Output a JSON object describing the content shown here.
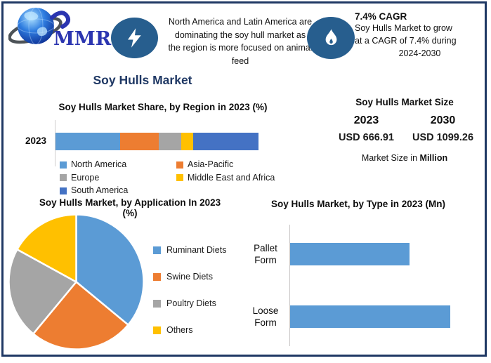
{
  "header": {
    "logo_text": "MMR",
    "callout1": {
      "lines": [
        "North America and Latin America are",
        "dominating the soy hull market as",
        "the region is more focused on animal",
        "feed"
      ]
    },
    "callout2": {
      "heading": "7.4% CAGR",
      "lines": [
        "Soy Hulls Market to grow",
        "at a CAGR of 7.4% during",
        "2024-2030"
      ]
    }
  },
  "main_title": "Soy Hulls Market",
  "market_size": {
    "title": "Soy Hulls Market Size",
    "years": [
      "2023",
      "2030"
    ],
    "values": [
      "USD 666.91",
      "USD 1099.26"
    ],
    "caption_prefix": "Market Size in ",
    "caption_emphasis": "Million",
    "value_color": "#1581C5"
  },
  "colors": {
    "border_navy": "#1F3864",
    "icon_ellipse": "#275E8E",
    "value_blue": "#1581C5"
  },
  "chart_data": [
    {
      "id": "region_share",
      "type": "bar",
      "variant": "stacked-horizontal",
      "title": "Soy Hulls Market Share, by Region in 2023 (%)",
      "categories": [
        "2023"
      ],
      "series": [
        {
          "name": "North America",
          "values": [
            32
          ],
          "color": "#5B9BD5"
        },
        {
          "name": "Asia-Pacific",
          "values": [
            19
          ],
          "color": "#ED7D31"
        },
        {
          "name": "Europe",
          "values": [
            11
          ],
          "color": "#A5A5A5"
        },
        {
          "name": "Middle East and Africa",
          "values": [
            6
          ],
          "color": "#FFC000"
        },
        {
          "name": "South America",
          "values": [
            32
          ],
          "color": "#4472C4"
        }
      ],
      "xlim": [
        0,
        100
      ],
      "grid": false,
      "legend_position": "bottom"
    },
    {
      "id": "application_share",
      "type": "pie",
      "title": "Soy Hulls Market, by Application In 2023\n(%)",
      "labels": [
        "Ruminant Diets",
        "Swine Diets",
        "Poultry Diets",
        "Others"
      ],
      "values": [
        36,
        25,
        22,
        17
      ],
      "colors": [
        "#5B9BD5",
        "#ED7D31",
        "#A5A5A5",
        "#FFC000"
      ],
      "start_angle_deg": 0,
      "direction": "clockwise",
      "legend_position": "right"
    },
    {
      "id": "type_size",
      "type": "bar",
      "variant": "horizontal",
      "title": "Soy Hulls Market, by Type in 2023 (Mn)",
      "categories": [
        "Pallet Form",
        "Loose Form"
      ],
      "values": [
        285,
        382
      ],
      "color": "#5B9BD5",
      "xlim": [
        0,
        382
      ],
      "grid": false
    }
  ]
}
